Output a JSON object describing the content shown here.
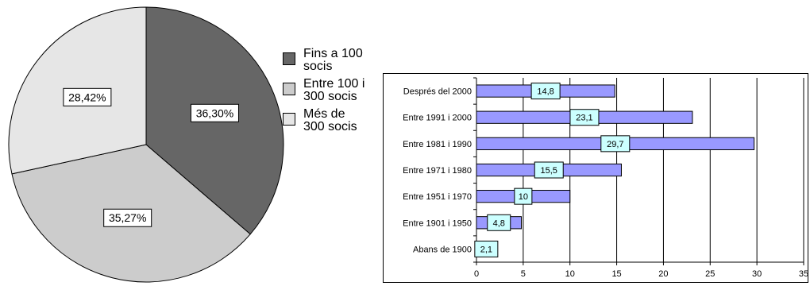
{
  "chart_data": [
    {
      "type": "pie",
      "labels": [
        "Fins a 100 socis",
        "Entre 100 i 300 socis",
        "Més de 300 socis"
      ],
      "values": [
        36.3,
        35.27,
        28.42
      ],
      "data_labels": [
        "36,30%",
        "35,27%",
        "28,42%"
      ],
      "colors": [
        "#666666",
        "#cccccc",
        "#e6e6e6"
      ],
      "legend": "right"
    },
    {
      "type": "bar",
      "orientation": "horizontal",
      "categories": [
        "Després del 2000",
        "Entre 1991 i 2000",
        "Entre 1981 i 1990",
        "Entre 1971 i 1980",
        "Entre 1951 i 1970",
        "Entre 1901 i 1950",
        "Abans de 1900"
      ],
      "values": [
        14.8,
        23.1,
        29.7,
        15.5,
        10,
        4.8,
        2.1
      ],
      "data_labels": [
        "14,8",
        "23,1",
        "29,7",
        "15,5",
        "10",
        "4,8",
        "2,1"
      ],
      "x_ticks": [
        "0",
        "5",
        "10",
        "15",
        "20",
        "25",
        "30",
        "35"
      ],
      "xlim": [
        0,
        35
      ],
      "grid": true,
      "bar_color": "#9999ff",
      "label_color": "#ccffff"
    }
  ]
}
